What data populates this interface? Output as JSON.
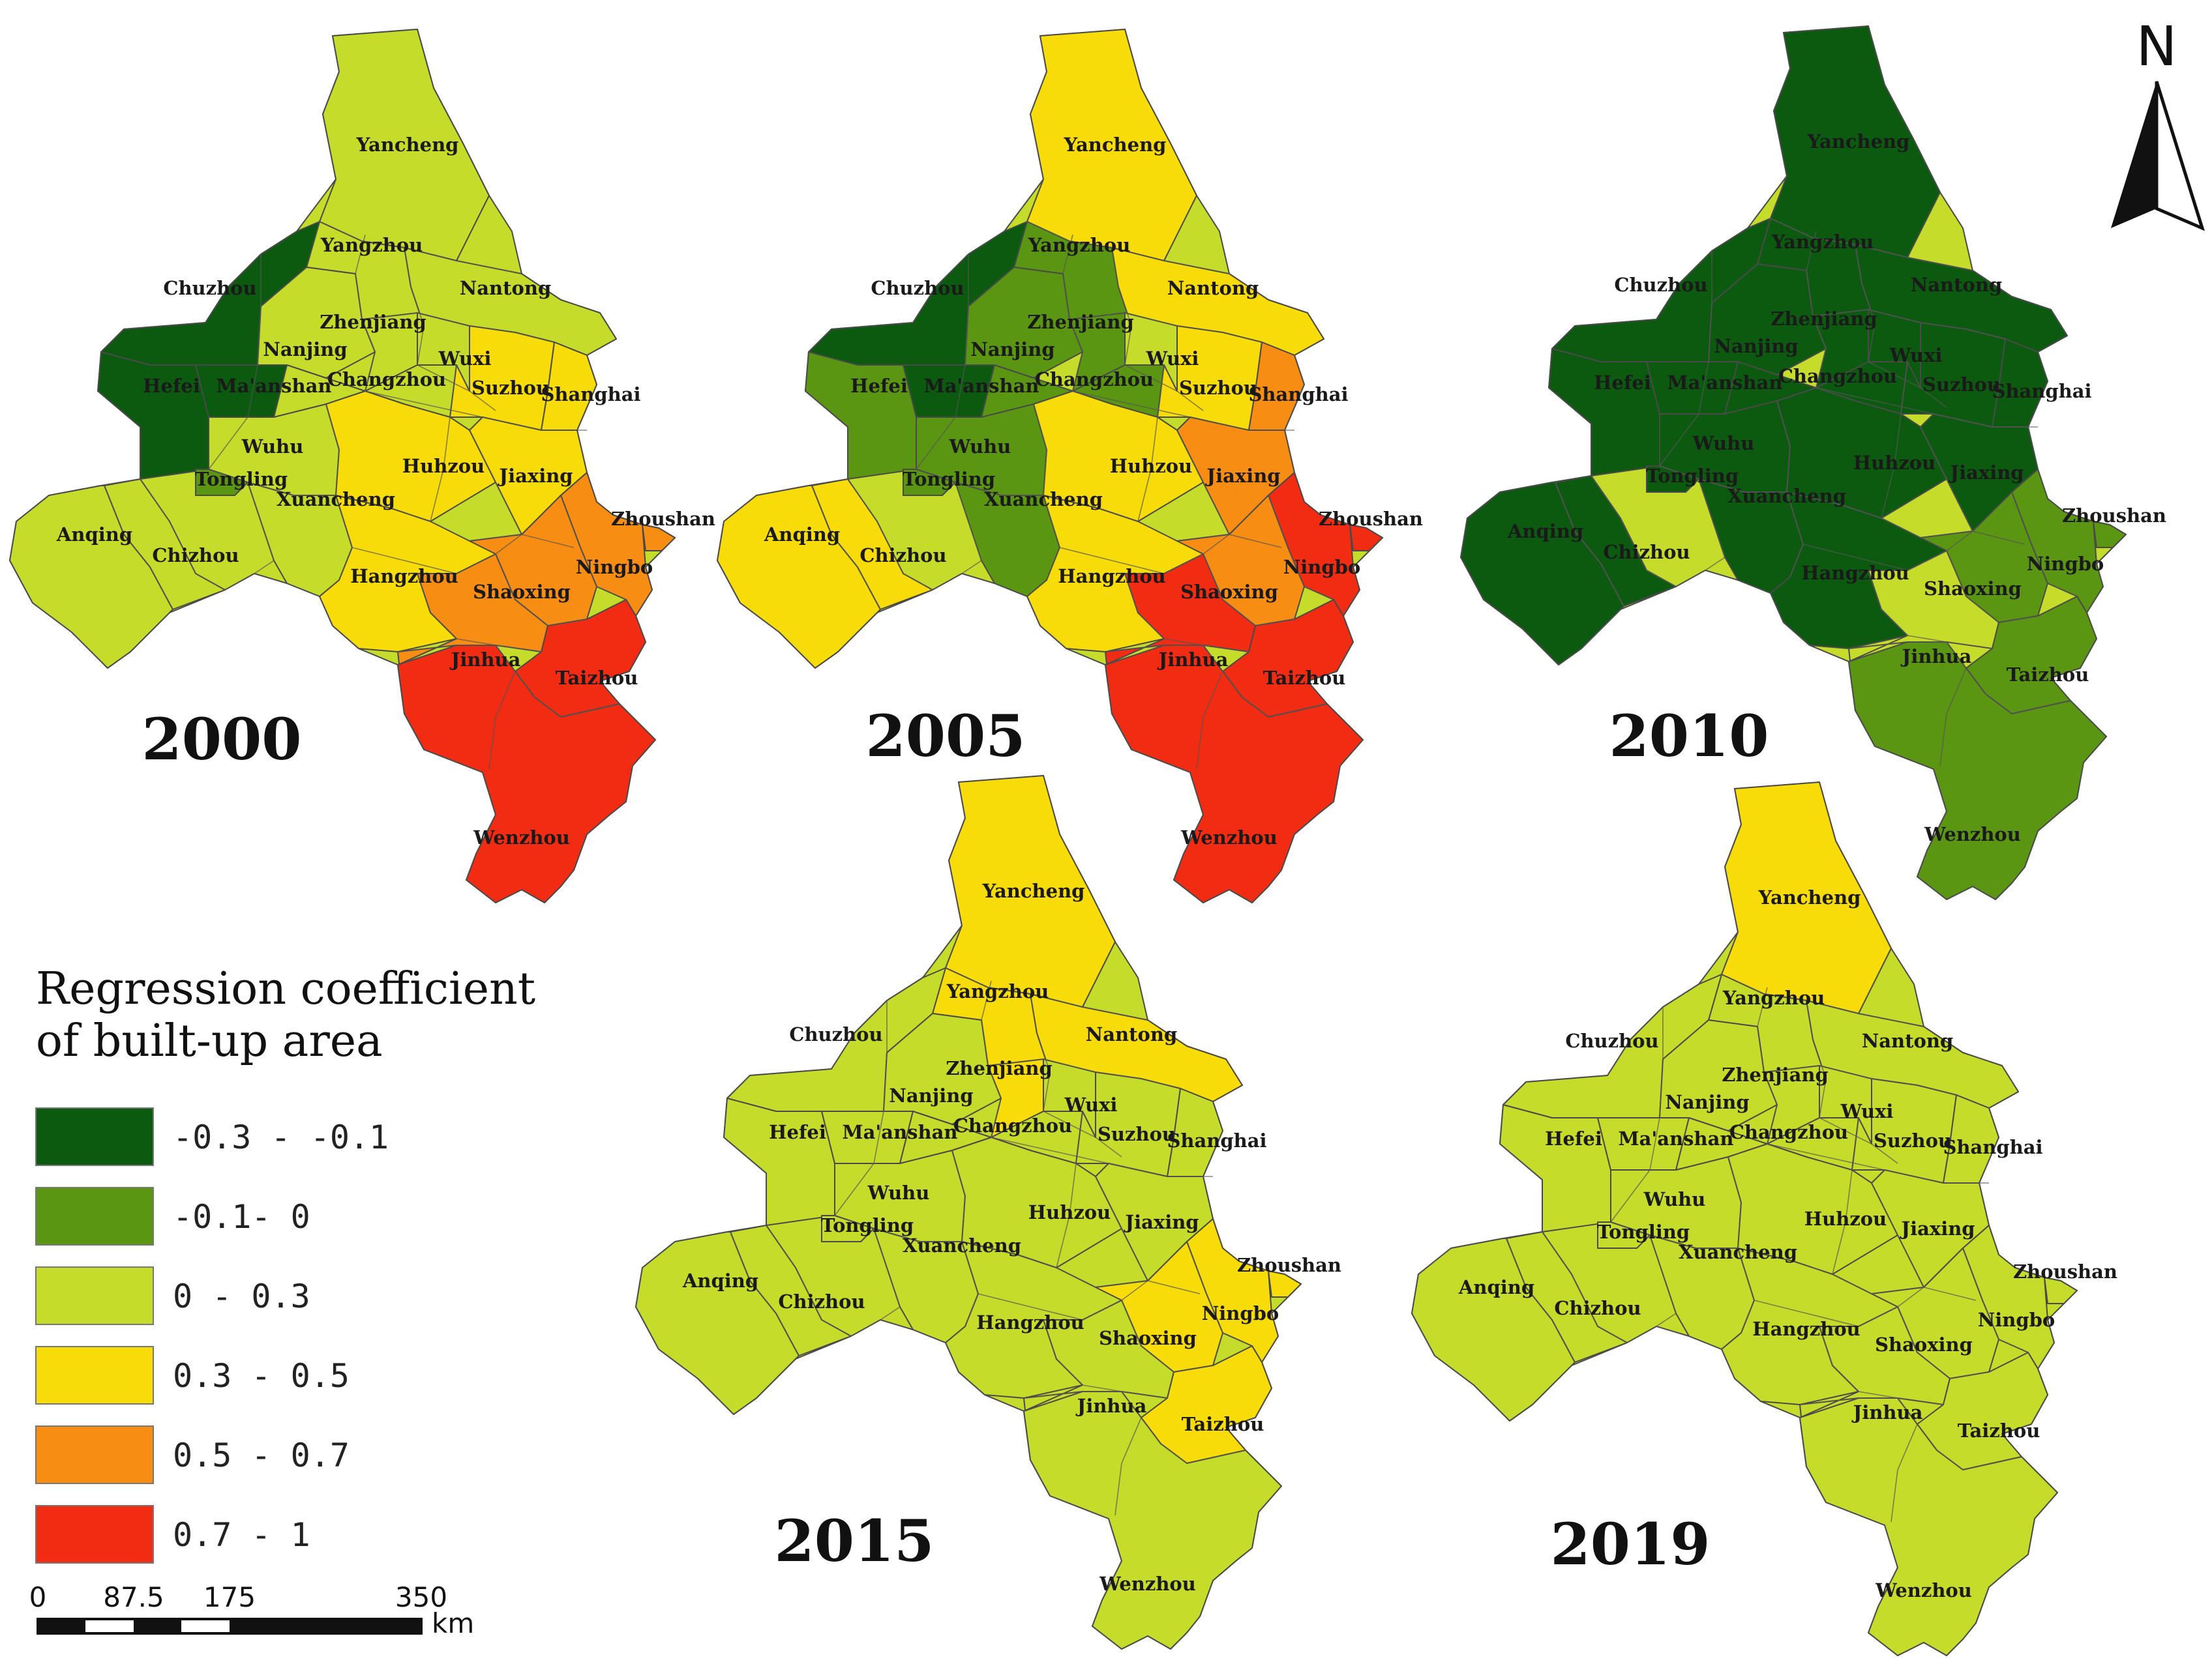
{
  "legend": {
    "title_line1": "Regression coefficient",
    "title_line2": "of built-up area",
    "classes": [
      {
        "label": "-0.3 - -0.1",
        "color": "#0b5a10"
      },
      {
        "label": "-0.1- 0",
        "color": "#5b9612"
      },
      {
        "label": "0 - 0.3",
        "color": "#c6dc2a"
      },
      {
        "label": "0.3 - 0.5",
        "color": "#f7dc0a"
      },
      {
        "label": "0.5 - 0.7",
        "color": "#f78d12"
      },
      {
        "label": "0.7 - 1",
        "color": "#f12c12"
      }
    ]
  },
  "scale_bar": {
    "ticks": [
      "0",
      "87.5",
      "175",
      "350"
    ],
    "unit": "km"
  },
  "north_arrow": {
    "label": "N",
    "icon": "north-arrow-icon"
  },
  "maps": [
    {
      "year": "2000",
      "classes": {
        "Yancheng": 2,
        "Yangzhou": 2,
        "Nantong": 2,
        "Chuzhou": 0,
        "Zhenjiang": 2,
        "Nanjing": 2,
        "Wuxi": 2,
        "Hefei": 0,
        "Ma'anshan": 0,
        "Changzhou": 2,
        "Suzhou": 3,
        "Shanghai": 3,
        "Wuhu": 2,
        "Huhzou": 3,
        "Tongling": 1,
        "Jiaxing": 3,
        "Xuancheng": 2,
        "Anqing": 2,
        "Chizhou": 2,
        "Zhoushan": 4,
        "Hangzhou": 3,
        "Ningbo": 4,
        "Shaoxing": 4,
        "Jinhua": 4,
        "Taizhou": 5,
        "Wenzhou": 5
      }
    },
    {
      "year": "2005",
      "classes": {
        "Yancheng": 3,
        "Yangzhou": 1,
        "Nantong": 3,
        "Chuzhou": 0,
        "Zhenjiang": 1,
        "Nanjing": 1,
        "Wuxi": 2,
        "Hefei": 1,
        "Ma'anshan": 0,
        "Changzhou": 1,
        "Suzhou": 3,
        "Shanghai": 4,
        "Wuhu": 1,
        "Huhzou": 3,
        "Tongling": 1,
        "Jiaxing": 4,
        "Xuancheng": 1,
        "Anqing": 3,
        "Chizhou": 3,
        "Zhoushan": 5,
        "Hangzhou": 3,
        "Ningbo": 5,
        "Shaoxing": 4,
        "Jinhua": 5,
        "Taizhou": 5,
        "Wenzhou": 5
      }
    },
    {
      "year": "2010",
      "classes": {
        "Yancheng": 0,
        "Yangzhou": 0,
        "Nantong": 0,
        "Chuzhou": 0,
        "Zhenjiang": 0,
        "Nanjing": 0,
        "Wuxi": 0,
        "Hefei": 0,
        "Ma'anshan": 0,
        "Changzhou": 0,
        "Suzhou": 0,
        "Shanghai": 0,
        "Wuhu": 0,
        "Huhzou": 0,
        "Tongling": 0,
        "Jiaxing": 0,
        "Xuancheng": 0,
        "Anqing": 0,
        "Chizhou": 0,
        "Zhoushan": 1,
        "Hangzhou": 0,
        "Ningbo": 1,
        "Shaoxing": 1,
        "Jinhua": 2,
        "Taizhou": 1,
        "Wenzhou": 1
      }
    },
    {
      "year": "2015",
      "classes": {
        "Yancheng": 3,
        "Yangzhou": 3,
        "Nantong": 3,
        "Chuzhou": 2,
        "Zhenjiang": 3,
        "Nanjing": 2,
        "Wuxi": 2,
        "Hefei": 2,
        "Ma'anshan": 2,
        "Changzhou": 2,
        "Suzhou": 2,
        "Shanghai": 2,
        "Wuhu": 2,
        "Huhzou": 2,
        "Tongling": 2,
        "Jiaxing": 2,
        "Xuancheng": 2,
        "Anqing": 2,
        "Chizhou": 2,
        "Zhoushan": 3,
        "Hangzhou": 2,
        "Ningbo": 3,
        "Shaoxing": 3,
        "Jinhua": 2,
        "Taizhou": 3,
        "Wenzhou": 2
      }
    },
    {
      "year": "2019",
      "classes": {
        "Yancheng": 3,
        "Yangzhou": 2,
        "Nantong": 2,
        "Chuzhou": 2,
        "Zhenjiang": 2,
        "Nanjing": 2,
        "Wuxi": 2,
        "Hefei": 2,
        "Ma'anshan": 2,
        "Changzhou": 2,
        "Suzhou": 2,
        "Shanghai": 2,
        "Wuhu": 2,
        "Huhzou": 2,
        "Tongling": 2,
        "Jiaxing": 2,
        "Xuancheng": 2,
        "Anqing": 2,
        "Chizhou": 2,
        "Zhoushan": 2,
        "Hangzhou": 2,
        "Ningbo": 2,
        "Shaoxing": 2,
        "Jinhua": 2,
        "Taizhou": 2,
        "Wenzhou": 2
      }
    }
  ]
}
